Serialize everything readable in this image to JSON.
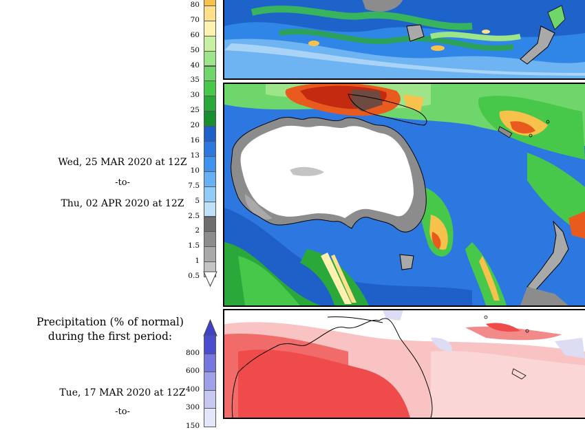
{
  "panel_mid": {
    "start_date": "Wed, 25 MAR 2020 at 12Z",
    "separator": "-to-",
    "end_date": "Thu, 02 APR 2020 at 12Z"
  },
  "panel_bottom": {
    "title_line1": "Precipitation (% of normal)",
    "title_line2": "during the first period:",
    "start_date": "Tue, 17 MAR 2020 at 12Z",
    "separator": "-to-"
  },
  "precip_colorbar": {
    "ticks": [
      "80",
      "70",
      "60",
      "50",
      "40",
      "35",
      "30",
      "25",
      "20",
      "16",
      "13",
      "10",
      "7.5",
      "5",
      "2.5",
      "2",
      "1.5",
      "1",
      "0.5"
    ],
    "colors": [
      "#f7c24b",
      "#ffe08a",
      "#fff2b0",
      "#c8f0a0",
      "#9ee58a",
      "#6fd66b",
      "#48c84a",
      "#2aa83a",
      "#168f2e",
      "#1f5fc8",
      "#2c78e0",
      "#3f93f0",
      "#66b1f5",
      "#91ccf7",
      "#bfe1f7",
      "#6e6e6e",
      "#8c8c8c",
      "#a9a9a9",
      "#c4c4c4"
    ]
  },
  "pct_colorbar": {
    "ticks": [
      "800",
      "600",
      "400",
      "300",
      "150"
    ],
    "colors": [
      "#4a4ccf",
      "#7477dd",
      "#9fa1e8",
      "#c7c8f2",
      "#e6e6fa"
    ]
  }
}
